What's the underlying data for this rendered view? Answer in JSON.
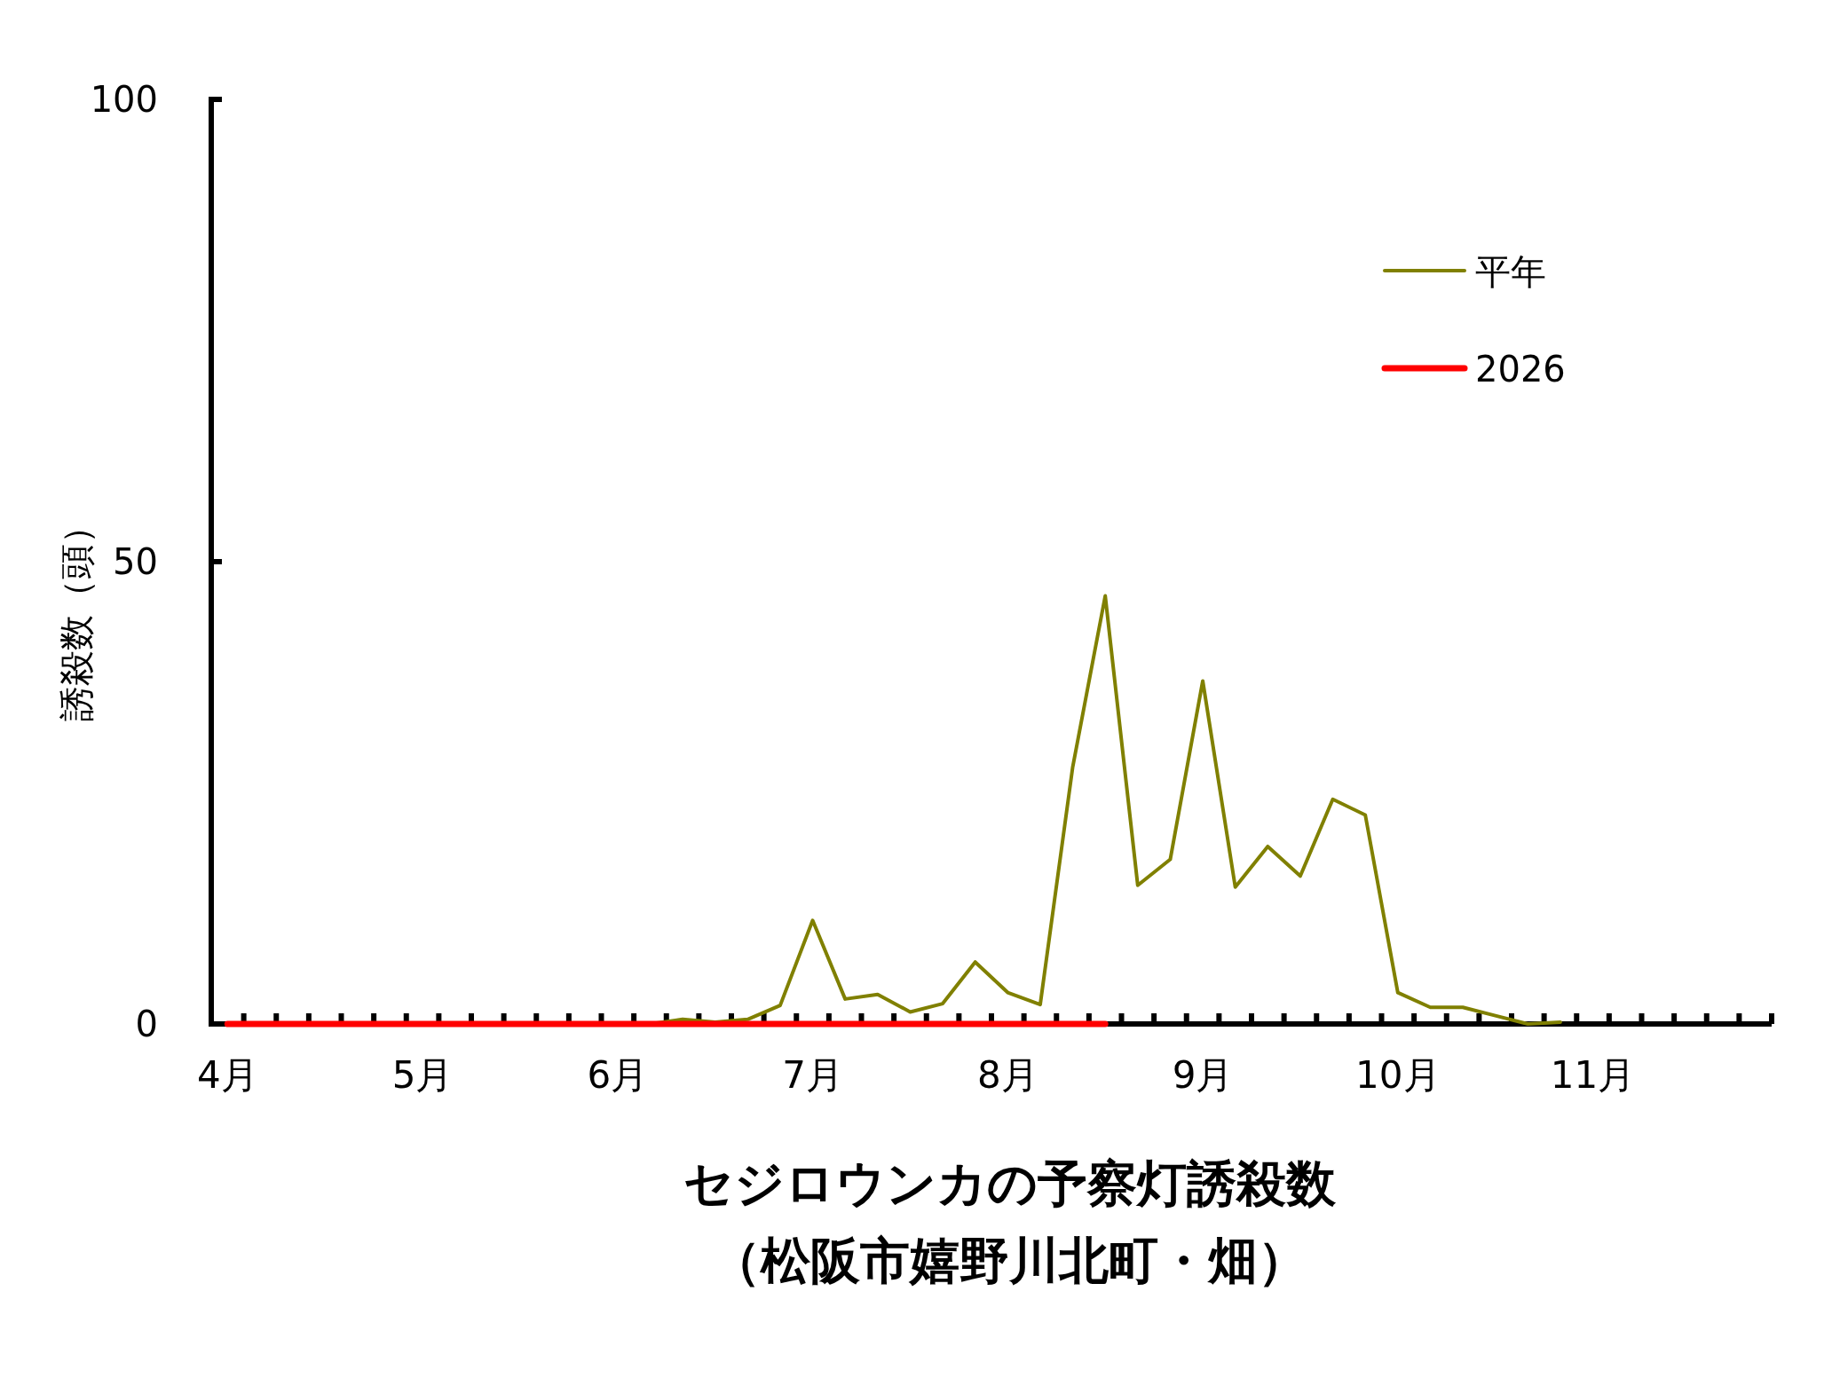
{
  "chart_data": {
    "type": "line",
    "title": "セジロウンカの予察灯誘殺数",
    "subtitle": "（松阪市嬉野川北町・畑）",
    "ylabel": "誘殺数（頭）",
    "categories": [
      "4月",
      null,
      null,
      null,
      null,
      null,
      "5月",
      null,
      null,
      null,
      null,
      null,
      "6月",
      null,
      null,
      null,
      null,
      null,
      "7月",
      null,
      null,
      null,
      null,
      null,
      "8月",
      null,
      null,
      null,
      null,
      null,
      "9月",
      null,
      null,
      null,
      null,
      null,
      "10月",
      null,
      null,
      null,
      null,
      null,
      "11月",
      null,
      null,
      null,
      null,
      null
    ],
    "series": [
      {
        "name": "平年",
        "color": "#808000",
        "values": [
          null,
          null,
          null,
          null,
          null,
          null,
          null,
          null,
          null,
          null,
          null,
          null,
          null,
          0,
          0.5,
          0.2,
          0.5,
          2,
          11.2,
          2.7,
          3.2,
          1.3,
          2.2,
          6.7,
          3.4,
          2.1,
          27.8,
          46.3,
          15,
          17.8,
          37.1,
          14.8,
          19.2,
          16,
          24.3,
          22.6,
          3.4,
          1.8,
          1.8,
          0.9,
          0,
          0.2,
          null,
          null,
          null,
          null,
          null,
          null
        ]
      },
      {
        "name": "2026",
        "color": "#ff0000",
        "values": [
          0,
          0,
          0,
          0,
          0,
          0,
          0,
          0,
          0,
          0,
          0,
          0,
          0,
          0,
          0,
          0,
          0,
          0,
          0,
          0,
          0,
          0,
          0,
          0,
          0,
          0,
          0,
          0,
          null,
          null,
          null,
          null,
          null,
          null,
          null,
          null,
          null,
          null,
          null,
          null,
          null,
          null,
          null,
          null,
          null,
          null,
          null,
          null
        ]
      }
    ],
    "ylim": [
      0,
      100
    ],
    "yticks": [
      0,
      50,
      100
    ],
    "legend": "top right",
    "grid": false
  }
}
